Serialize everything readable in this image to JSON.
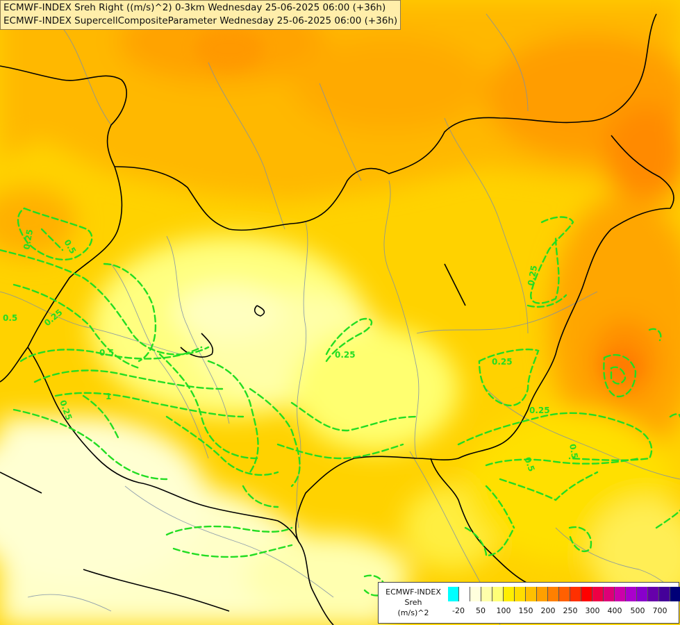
{
  "titles": {
    "line1": "ECMWF-INDEX Sreh Right ((m/s)^2) 0-3km Wednesday 25-06-2025 06:00 (+36h)",
    "line2": "ECMWF-INDEX SupercellCompositeParameter Wednesday 25-06-2025 06:00 (+36h)"
  },
  "legend": {
    "title_lines": [
      "ECMWF-INDEX",
      "Sreh",
      "(m/s)^2"
    ],
    "colors": [
      "#00ffff",
      "#ffffff",
      "#ffffdd",
      "#ffffaa",
      "#ffff77",
      "#ffee00",
      "#ffdd00",
      "#ffc000",
      "#ffa000",
      "#ff8000",
      "#ff6000",
      "#ff3000",
      "#ff0000",
      "#ee0044",
      "#dd0077",
      "#cc00aa",
      "#aa00cc",
      "#8800cc",
      "#6600aa",
      "#440099",
      "#000077"
    ],
    "ticks": [
      "-20",
      "50",
      "100",
      "150",
      "200",
      "250",
      "300",
      "400",
      "500",
      "700"
    ]
  },
  "contour_labels": [
    "0.25",
    "0.25",
    "0.25",
    "0.25",
    "0.25",
    "0.25",
    "0.25",
    "0.5",
    "0.5",
    "0.5",
    "0.5",
    "0.5",
    "1"
  ],
  "colors": {
    "contour": "#22dd22",
    "border": "#000000",
    "river": "#7d8fa8"
  }
}
